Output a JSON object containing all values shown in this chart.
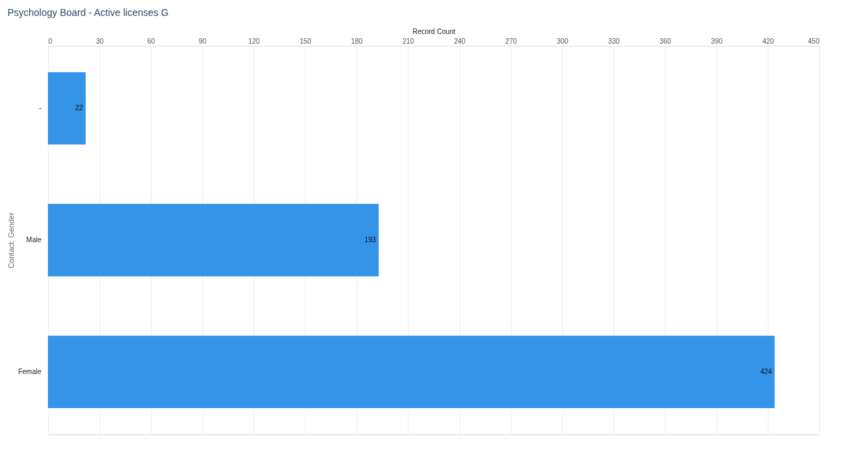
{
  "chart_data": {
    "type": "bar",
    "orientation": "horizontal",
    "title": "Psychology Board - Active licenses G",
    "xlabel": "Record Count",
    "ylabel": "Contact: Gender",
    "categories": [
      "-",
      "Male",
      "Female"
    ],
    "values": [
      22,
      193,
      424
    ],
    "color": "#3394e8",
    "xlim": [
      0,
      450
    ],
    "xticks": [
      0,
      30,
      60,
      90,
      120,
      150,
      180,
      210,
      240,
      270,
      300,
      330,
      360,
      390,
      420,
      450
    ],
    "grid": "x",
    "data_labels": true
  }
}
